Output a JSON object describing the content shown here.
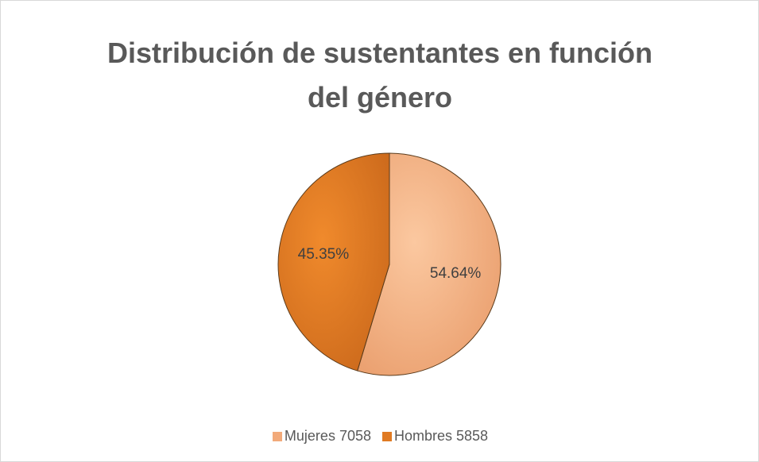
{
  "chart_data": {
    "type": "pie",
    "title": "Distribución de sustentantes en función del género",
    "categories": [
      "Mujeres 7058",
      "Hombres 5858"
    ],
    "values": [
      54.64,
      45.35
    ],
    "value_labels": [
      "54.64%",
      "45.35%"
    ],
    "colors": [
      "#f2aa7a",
      "#e07a22"
    ],
    "legend": "bottom"
  }
}
